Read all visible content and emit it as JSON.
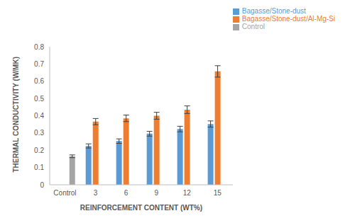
{
  "chart_data": {
    "type": "bar",
    "categories": [
      "Control",
      "3",
      "6",
      "9",
      "12",
      "15"
    ],
    "series": [
      {
        "name": "Bagasse/Stone-dust",
        "color": "#5b9bd5",
        "values": [
          null,
          0.225,
          0.253,
          0.296,
          0.323,
          0.352
        ],
        "error": [
          null,
          0.012,
          0.013,
          0.014,
          0.016,
          0.018
        ]
      },
      {
        "name": "Bagasse/Stone-dust/Al-Mg-Si",
        "color": "#ed7d31",
        "values": [
          null,
          0.366,
          0.385,
          0.4,
          0.435,
          0.657
        ],
        "error": [
          null,
          0.018,
          0.019,
          0.02,
          0.022,
          0.033
        ]
      },
      {
        "name": "Control",
        "color": "#a5a5a5",
        "values": [
          0.165,
          null,
          null,
          null,
          null,
          null
        ],
        "error": [
          0.008,
          null,
          null,
          null,
          null,
          null
        ]
      }
    ],
    "x_label": "REINFORCEMENT CONTENT (WT%)",
    "y_label": "THERMAL CONDUCTIVITY (W/MK)",
    "ylim": [
      0,
      0.8
    ],
    "yticks": [
      0,
      0.1,
      0.2,
      0.3,
      0.4,
      0.5,
      0.6,
      0.7,
      0.8
    ],
    "grid": false,
    "legend": "top-right"
  }
}
